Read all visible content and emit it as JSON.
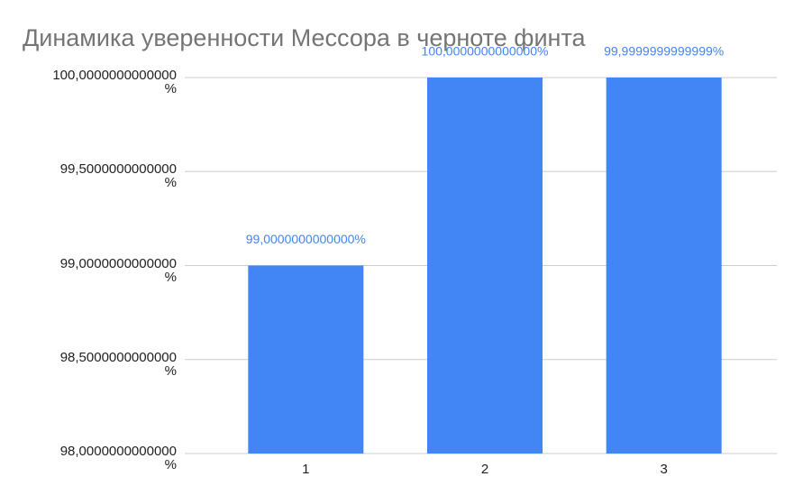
{
  "chart_data": {
    "type": "bar",
    "title": "Динамика уверенности Мессора в черноте финта",
    "categories": [
      "1",
      "2",
      "3"
    ],
    "values": [
      99,
      100,
      99.9999999999999
    ],
    "value_labels": [
      "99,0000000000000%",
      "100,0000000000000%",
      "99,9999999999999%"
    ],
    "color": "#4285f4",
    "ylim": [
      98,
      100
    ],
    "yticks": [
      {
        "value": 98,
        "label": "98,0000000000000\n%"
      },
      {
        "value": 98.5,
        "label": "98,5000000000000\n%"
      },
      {
        "value": 99,
        "label": "99,0000000000000\n%"
      },
      {
        "value": 99.5,
        "label": "99,5000000000000\n%"
      },
      {
        "value": 100,
        "label": "100,0000000000000\n%"
      }
    ],
    "grid": true
  }
}
